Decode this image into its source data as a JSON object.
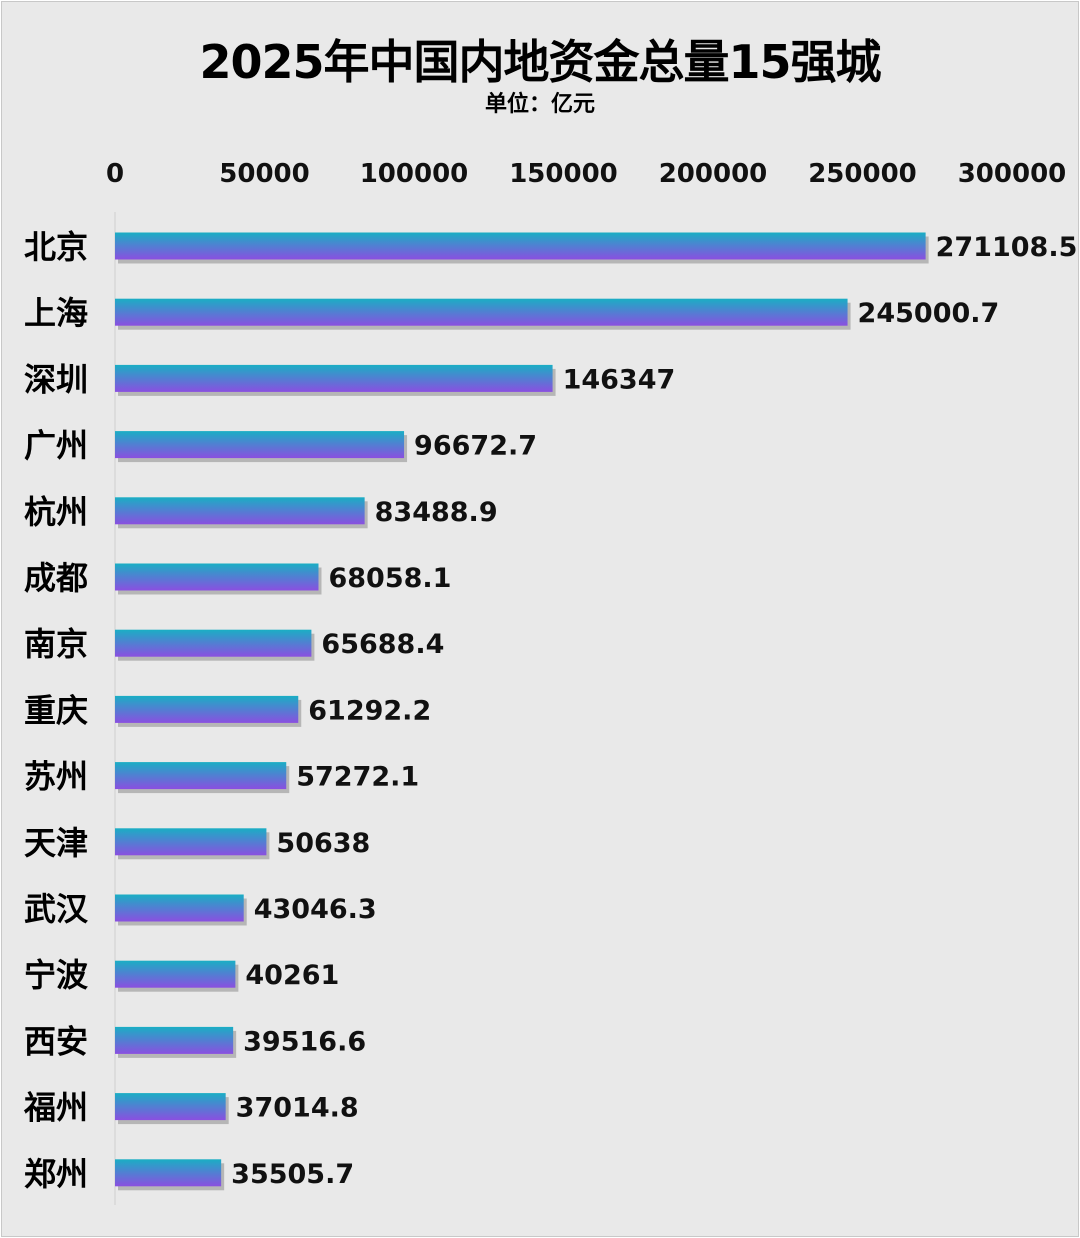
{
  "chart_data": {
    "type": "bar",
    "orientation": "horizontal",
    "title": "2025年中国内地资金总量15强城",
    "subtitle": "单位：亿元",
    "categories": [
      "北京",
      "上海",
      "深圳",
      "广州",
      "杭州",
      "成都",
      "南京",
      "重庆",
      "苏州",
      "天津",
      "武汉",
      "宁波",
      "西安",
      "福州",
      "郑州"
    ],
    "values": [
      271108.5,
      245000.7,
      146347,
      96672.7,
      83488.9,
      68058.1,
      65688.4,
      61292.2,
      57272.1,
      50638,
      43046.3,
      40261,
      39516.6,
      37014.8,
      35505.7
    ],
    "value_labels": [
      "271108.5",
      "245000.7",
      "146347",
      "96672.7",
      "83488.9",
      "68058.1",
      "65688.4",
      "61292.2",
      "57272.1",
      "50638",
      "43046.3",
      "40261",
      "39516.6",
      "37014.8",
      "35505.7"
    ],
    "xlim": [
      0,
      300000
    ],
    "x_ticks": [
      0,
      50000,
      100000,
      150000,
      200000,
      250000,
      300000
    ],
    "x_axis_position": "top",
    "grid": false,
    "legend": "none",
    "colors": {
      "bar_top": "#1aaec4",
      "bar_bottom": "#8a4fe0",
      "background": "#e9e9e9"
    }
  }
}
